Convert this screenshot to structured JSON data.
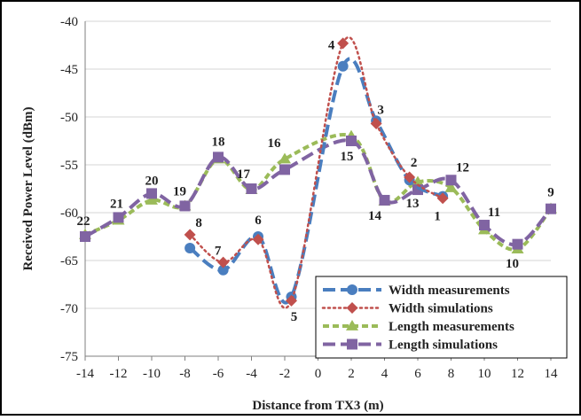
{
  "chart_data": {
    "type": "line",
    "xlabel": "Distance from TX3 (m)",
    "ylabel": "Received Power Level (dBm)",
    "xlim": [
      -14,
      14
    ],
    "ylim": [
      -75,
      -40
    ],
    "xticks": [
      -14,
      -12,
      -10,
      -8,
      -6,
      -4,
      -2,
      0,
      2,
      4,
      6,
      8,
      10,
      12,
      14
    ],
    "yticks": [
      -40,
      -45,
      -50,
      -55,
      -60,
      -65,
      -70,
      -75
    ],
    "grid": "horizontal",
    "legend_position": "bottom-right",
    "series": [
      {
        "name": "Width measurements",
        "color": "#4a7ebf",
        "marker": "circle",
        "line_style": "long-dash",
        "x": [
          -7.7,
          -5.7,
          -3.6,
          -1.6,
          1.5,
          3.5,
          5.5,
          7.5
        ],
        "y": [
          -63.7,
          -66.0,
          -62.5,
          -68.8,
          -44.7,
          -50.4,
          -56.6,
          -58.3
        ]
      },
      {
        "name": "Width simulations",
        "color": "#c0504d",
        "marker": "diamond",
        "line_style": "dotted",
        "x": [
          -7.7,
          -5.7,
          -3.6,
          -1.6,
          1.5,
          3.5,
          5.5,
          7.5
        ],
        "y": [
          -62.3,
          -65.2,
          -62.8,
          -69.2,
          -42.3,
          -50.7,
          -56.3,
          -58.5
        ]
      },
      {
        "name": "Length measurements",
        "color": "#9bbb59",
        "marker": "triangle",
        "line_style": "dashed",
        "x": [
          -14,
          -12,
          -10,
          -8,
          -6,
          -4,
          -2,
          2,
          4,
          6,
          8,
          10,
          12,
          14
        ],
        "y": [
          -62.3,
          -60.8,
          -58.7,
          -59.3,
          -54.4,
          -57.6,
          -54.4,
          -52.0,
          -58.8,
          -56.8,
          -57.4,
          -61.8,
          -63.8,
          -59.6
        ]
      },
      {
        "name": "Length simulations",
        "color": "#8064a2",
        "marker": "square",
        "line_style": "long-dash",
        "x": [
          -14,
          -12,
          -10,
          -8,
          -6,
          -4,
          -2,
          2,
          4,
          6,
          8,
          10,
          12,
          14
        ],
        "y": [
          -62.5,
          -60.5,
          -58.0,
          -59.3,
          -54.2,
          -57.5,
          -55.5,
          -52.5,
          -58.7,
          -57.6,
          -56.6,
          -61.3,
          -63.3,
          -59.6
        ]
      }
    ],
    "annotations": [
      {
        "text": "22",
        "x": -14,
        "y": -62.4
      },
      {
        "text": "21",
        "x": -12,
        "y": -60.6
      },
      {
        "text": "20",
        "x": -10,
        "y": -58.2
      },
      {
        "text": "19",
        "x": -8,
        "y": -59.3
      },
      {
        "text": "18",
        "x": -6,
        "y": -54.3
      },
      {
        "text": "17",
        "x": -4,
        "y": -57.5
      },
      {
        "text": "16",
        "x": -2,
        "y": -54.8
      },
      {
        "text": "15",
        "x": 2,
        "y": -52.3
      },
      {
        "text": "14",
        "x": 4,
        "y": -58.7
      },
      {
        "text": "13",
        "x": 6,
        "y": -57.2
      },
      {
        "text": "12",
        "x": 8,
        "y": -56.8
      },
      {
        "text": "11",
        "x": 10,
        "y": -61.5
      },
      {
        "text": "10",
        "x": 12,
        "y": -63.5
      },
      {
        "text": "9",
        "x": 14,
        "y": -59.6
      },
      {
        "text": "8",
        "x": -7.7,
        "y": -62.6
      },
      {
        "text": "7",
        "x": -5.7,
        "y": -65.5
      },
      {
        "text": "6",
        "x": -3.6,
        "y": -62.6
      },
      {
        "text": "5",
        "x": -1.6,
        "y": -69.0
      },
      {
        "text": "4",
        "x": 1.5,
        "y": -43.4
      },
      {
        "text": "3",
        "x": 3.5,
        "y": -50.5
      },
      {
        "text": "2",
        "x": 5.5,
        "y": -56.4
      },
      {
        "text": "1",
        "x": 7.5,
        "y": -58.4
      }
    ]
  }
}
